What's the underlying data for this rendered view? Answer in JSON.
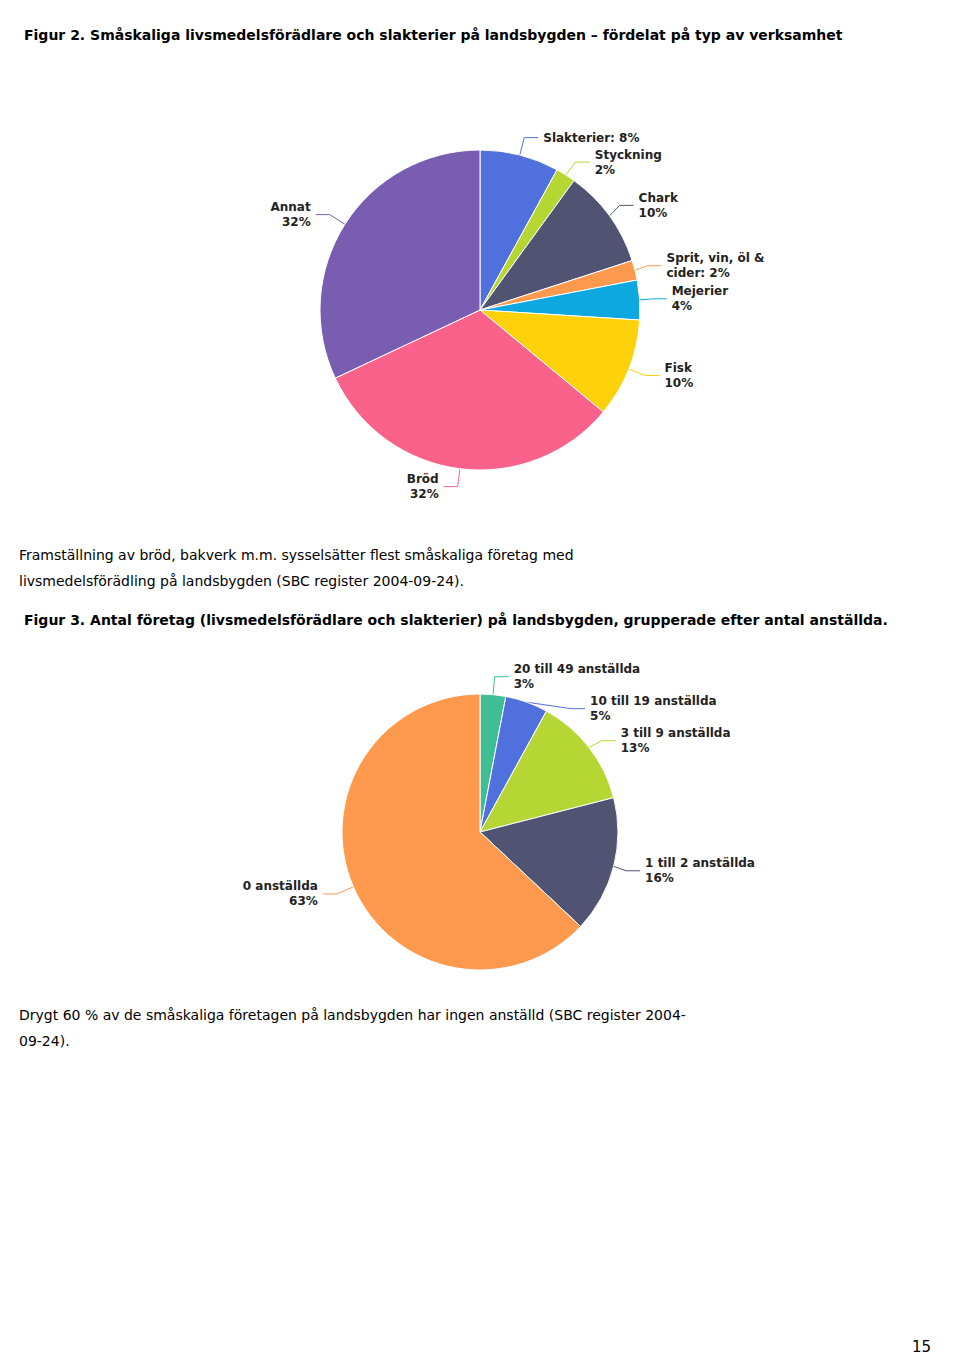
{
  "chart_data": [
    {
      "type": "pie",
      "title": "Figur 2. Småskaliga livsmedelsförädlare och slakterier på landsbygden – fördelat på typ av verksamhet",
      "values": [
        8,
        2,
        10,
        2,
        4,
        10,
        32,
        32
      ],
      "value_labels": [
        "Slakterier: 8%",
        "Styckning\n2%",
        "Chark\n10%",
        "Sprit, vin, öl &\ncider: 2%",
        "Mejerier\n4%",
        "Fisk\n10%",
        "Bröd\n32%",
        "Annat\n32%"
      ],
      "data_labels": true,
      "annotations": [
        "Framställning av bröd, bakverk m.m. sysselsätter flest småskaliga företag med",
        "livsmedelsförädling på landsbygden (SBC register 2004-09-24)."
      ]
    },
    {
      "type": "pie",
      "title": "Figur 3. Antal företag (livsmedelsförädlare och slakterier) på landsbygden, grupperade efter antal anställda.",
      "values": [
        3,
        5,
        13,
        16,
        63
      ],
      "value_labels": [
        "20 till 49 anställda\n3%",
        "10 till 19 anställda\n5%",
        "3 till 9 anställda\n13%",
        "1 till 2 anställda\n16%",
        "0 anställda\n63%"
      ],
      "data_labels": true,
      "annotations": [
        "Drygt 60 % av de småskaliga företagen på landsbygden har ingen anställd (SBC register 2004-",
        "09-24).",
        "15"
      ]
    }
  ]
}
